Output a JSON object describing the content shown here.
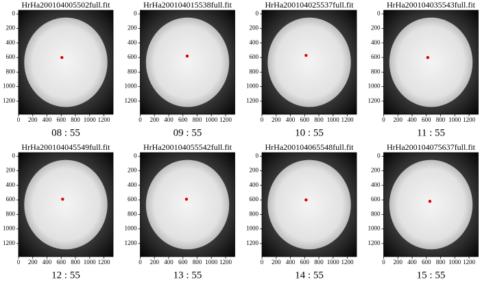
{
  "chart_data": [
    {
      "type": "scatter",
      "title": "HrHa200104005502full.fit",
      "caption": "08 : 55",
      "x": [
        610
      ],
      "values": [
        600
      ],
      "color": "#e00000",
      "xlim": [
        0,
        1330
      ],
      "ylim": [
        1380,
        -50
      ],
      "xticks": [
        0,
        200,
        400,
        600,
        800,
        1000,
        1200
      ],
      "yticks": [
        0,
        200,
        400,
        600,
        800,
        1000,
        1200
      ]
    },
    {
      "type": "scatter",
      "title": "HrHa200104015538full.fit",
      "caption": "09 : 55",
      "x": [
        660
      ],
      "values": [
        580
      ],
      "color": "#e00000",
      "xlim": [
        0,
        1330
      ],
      "ylim": [
        1380,
        -50
      ],
      "xticks": [
        0,
        200,
        400,
        600,
        800,
        1000,
        1200
      ],
      "yticks": [
        0,
        200,
        400,
        600,
        800,
        1000,
        1200
      ]
    },
    {
      "type": "scatter",
      "title": "HrHa200104025537full.fit",
      "caption": "10 : 55",
      "x": [
        620
      ],
      "values": [
        570
      ],
      "color": "#e00000",
      "xlim": [
        0,
        1330
      ],
      "ylim": [
        1380,
        -50
      ],
      "xticks": [
        0,
        200,
        400,
        600,
        800,
        1000,
        1200
      ],
      "yticks": [
        0,
        200,
        400,
        600,
        800,
        1000,
        1200
      ]
    },
    {
      "type": "scatter",
      "title": "HrHa200104035543full.fit",
      "caption": "11 : 55",
      "x": [
        620
      ],
      "values": [
        600
      ],
      "color": "#e00000",
      "xlim": [
        0,
        1330
      ],
      "ylim": [
        1380,
        -50
      ],
      "xticks": [
        0,
        200,
        400,
        600,
        800,
        1000,
        1200
      ],
      "yticks": [
        0,
        200,
        400,
        600,
        800,
        1000,
        1200
      ]
    },
    {
      "type": "scatter",
      "title": "HrHa200104045549full.fit",
      "caption": "12 : 55",
      "x": [
        620
      ],
      "values": [
        590
      ],
      "color": "#e00000",
      "xlim": [
        0,
        1330
      ],
      "ylim": [
        1380,
        -50
      ],
      "xticks": [
        0,
        200,
        400,
        600,
        800,
        1000,
        1200
      ],
      "yticks": [
        0,
        200,
        400,
        600,
        800,
        1000,
        1200
      ]
    },
    {
      "type": "scatter",
      "title": "HrHa200104055542full.fit",
      "caption": "13 : 55",
      "x": [
        650
      ],
      "values": [
        590
      ],
      "color": "#e00000",
      "xlim": [
        0,
        1330
      ],
      "ylim": [
        1380,
        -50
      ],
      "xticks": [
        0,
        200,
        400,
        600,
        800,
        1000,
        1200
      ],
      "yticks": [
        0,
        200,
        400,
        600,
        800,
        1000,
        1200
      ]
    },
    {
      "type": "scatter",
      "title": "HrHa200104065548full.fit",
      "caption": "14 : 55",
      "x": [
        620
      ],
      "values": [
        600
      ],
      "color": "#e00000",
      "xlim": [
        0,
        1330
      ],
      "ylim": [
        1380,
        -50
      ],
      "xticks": [
        0,
        200,
        400,
        600,
        800,
        1000,
        1200
      ],
      "yticks": [
        0,
        200,
        400,
        600,
        800,
        1000,
        1200
      ]
    },
    {
      "type": "scatter",
      "title": "HrHa200104075637full.fit",
      "caption": "15 : 55",
      "x": [
        650
      ],
      "values": [
        620
      ],
      "color": "#e00000",
      "xlim": [
        0,
        1330
      ],
      "ylim": [
        1380,
        -50
      ],
      "xticks": [
        0,
        200,
        400,
        600,
        800,
        1000,
        1200
      ],
      "yticks": [
        0,
        200,
        400,
        600,
        800,
        1000,
        1200
      ]
    }
  ]
}
